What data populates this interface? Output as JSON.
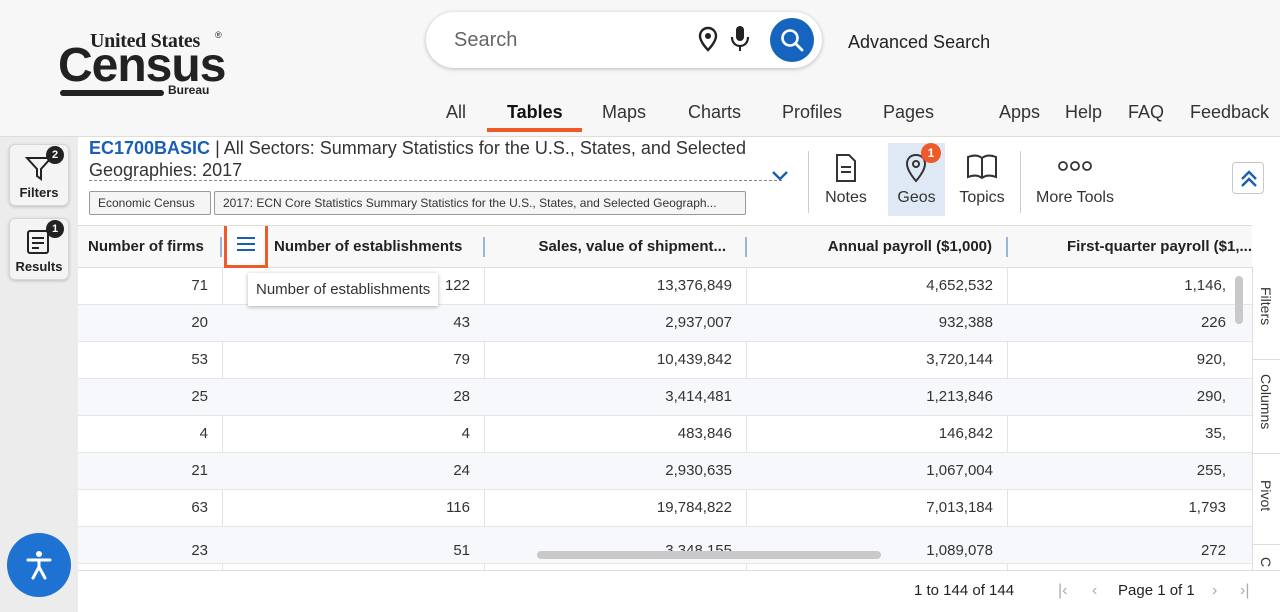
{
  "logo": {
    "line1": "United States",
    "reg": "®",
    "line2": "Census",
    "line3": "Bureau"
  },
  "search": {
    "placeholder": "Search",
    "advanced": "Advanced Search"
  },
  "nav": {
    "items": [
      "All",
      "Tables",
      "Maps",
      "Charts",
      "Profiles",
      "Pages",
      "Apps",
      "Help",
      "FAQ",
      "Feedback"
    ],
    "active": "Tables"
  },
  "rail": {
    "filters": {
      "label": "Filters",
      "badge": "2"
    },
    "results": {
      "label": "Results",
      "badge": "1"
    }
  },
  "table": {
    "id": "EC1700BASIC",
    "title_rest": " | All Sectors: Summary Statistics for the U.S., States, and Selected Geographies: 2017",
    "chips": [
      "Economic Census",
      "2017: ECN Core Statistics Summary Statistics for the U.S., States, and Selected Geograph..."
    ]
  },
  "tools": {
    "notes": "Notes",
    "geos": "Geos",
    "geos_badge": "1",
    "topics": "Topics",
    "more": "More Tools"
  },
  "grid": {
    "headers": [
      "Number of firms",
      "Number of establishments",
      "Sales, value of shipment...",
      "Annual payroll ($1,000)",
      "First-quarter payroll ($1,..."
    ],
    "rows": [
      [
        "71",
        "122",
        "13,376,849",
        "4,652,532",
        "1,146,"
      ],
      [
        "20",
        "43",
        "2,937,007",
        "932,388",
        "226"
      ],
      [
        "53",
        "79",
        "10,439,842",
        "3,720,144",
        "920,"
      ],
      [
        "25",
        "28",
        "3,414,481",
        "1,213,846",
        "290,"
      ],
      [
        "4",
        "4",
        "483,846",
        "146,842",
        "35,"
      ],
      [
        "21",
        "24",
        "2,930,635",
        "1,067,004",
        "255,"
      ],
      [
        "63",
        "116",
        "19,784,822",
        "7,013,184",
        "1,793"
      ],
      [
        "23",
        "51",
        "3,348,155",
        "1,089,078",
        "272"
      ]
    ],
    "tooltip": "Number of establishments"
  },
  "side_tabs": [
    "Filters",
    "Columns",
    "Pivot",
    "C"
  ],
  "footer": {
    "range": "1 to 144 of 144",
    "page": "Page 1 of 1"
  },
  "colors": {
    "accent": "#ef5a2a",
    "brand_blue": "#1565c0",
    "link": "#1b5fb4"
  }
}
